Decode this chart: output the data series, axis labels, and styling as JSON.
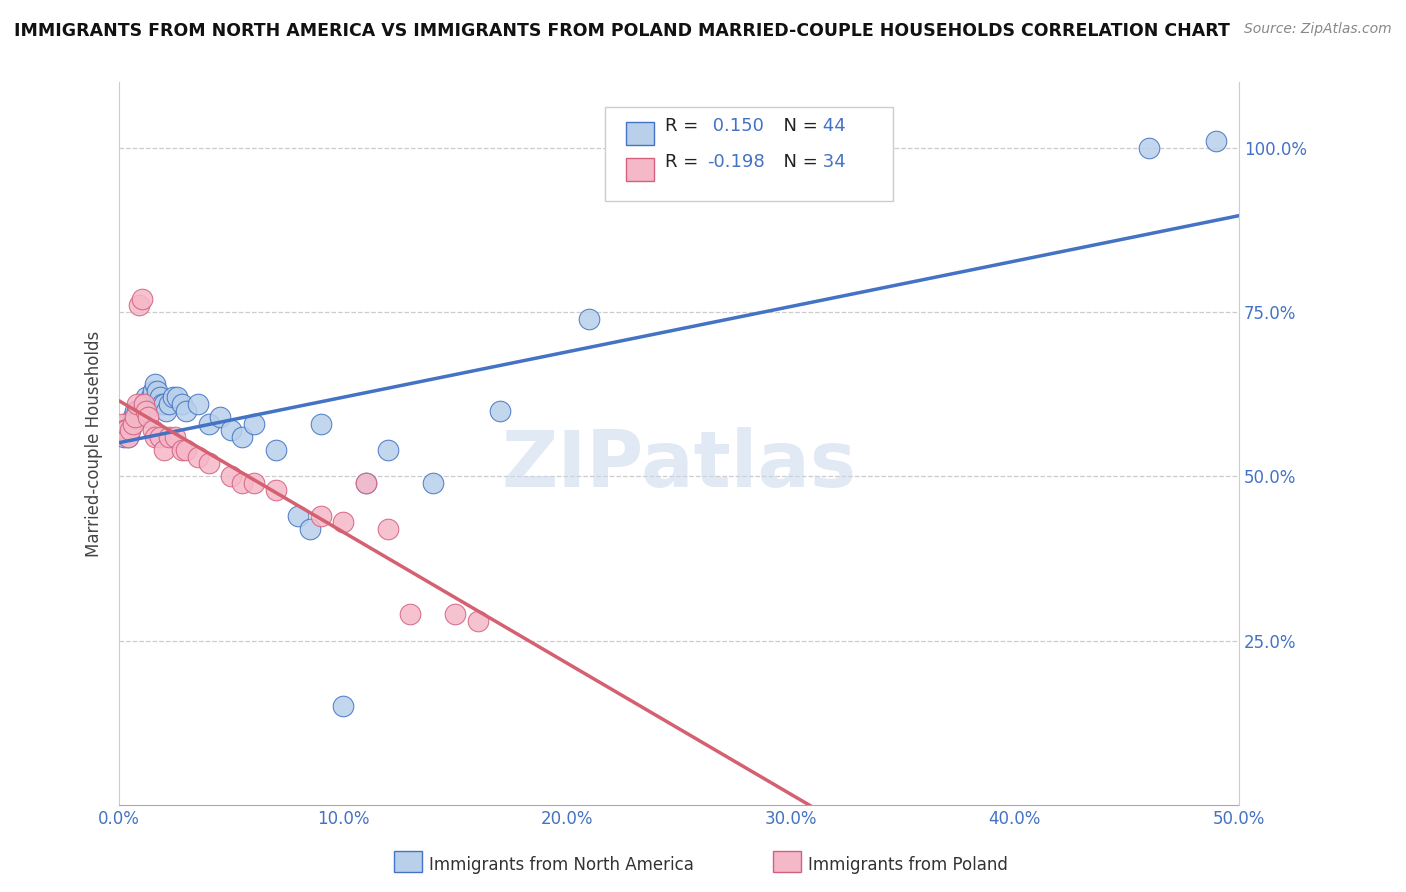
{
  "title": "IMMIGRANTS FROM NORTH AMERICA VS IMMIGRANTS FROM POLAND MARRIED-COUPLE HOUSEHOLDS CORRELATION CHART",
  "source": "Source: ZipAtlas.com",
  "ylabel": "Married-couple Households",
  "xlim": [
    0.0,
    0.5
  ],
  "ylim": [
    0.0,
    1.1
  ],
  "yticks": [
    0.25,
    0.5,
    0.75,
    1.0
  ],
  "yticklabels": [
    "25.0%",
    "50.0%",
    "75.0%",
    "100.0%"
  ],
  "xticks": [
    0.0,
    0.1,
    0.2,
    0.3,
    0.4,
    0.5
  ],
  "xticklabels": [
    "0.0%",
    "10.0%",
    "20.0%",
    "30.0%",
    "40.0%",
    "50.0%"
  ],
  "legend_labels": [
    "Immigrants from North America",
    "Immigrants from Poland"
  ],
  "R_blue": 0.15,
  "N_blue": 44,
  "R_pink": -0.198,
  "N_pink": 34,
  "blue_fill": "#b8d0ea",
  "pink_fill": "#f5b8c8",
  "blue_edge": "#4472c4",
  "pink_edge": "#d46080",
  "blue_line_color": "#4472c4",
  "pink_line_color": "#d46070",
  "watermark": "ZIPatlas",
  "background_color": "#ffffff",
  "grid_color": "#cccccc",
  "blue_scatter": [
    [
      0.001,
      0.57
    ],
    [
      0.002,
      0.56
    ],
    [
      0.003,
      0.58
    ],
    [
      0.004,
      0.56
    ],
    [
      0.005,
      0.57
    ],
    [
      0.006,
      0.59
    ],
    [
      0.007,
      0.6
    ],
    [
      0.008,
      0.6
    ],
    [
      0.009,
      0.59
    ],
    [
      0.01,
      0.6
    ],
    [
      0.011,
      0.61
    ],
    [
      0.012,
      0.62
    ],
    [
      0.013,
      0.61
    ],
    [
      0.014,
      0.62
    ],
    [
      0.015,
      0.63
    ],
    [
      0.016,
      0.64
    ],
    [
      0.017,
      0.63
    ],
    [
      0.018,
      0.62
    ],
    [
      0.019,
      0.61
    ],
    [
      0.02,
      0.61
    ],
    [
      0.021,
      0.6
    ],
    [
      0.022,
      0.61
    ],
    [
      0.024,
      0.62
    ],
    [
      0.026,
      0.62
    ],
    [
      0.028,
      0.61
    ],
    [
      0.03,
      0.6
    ],
    [
      0.035,
      0.61
    ],
    [
      0.04,
      0.58
    ],
    [
      0.045,
      0.59
    ],
    [
      0.05,
      0.57
    ],
    [
      0.055,
      0.56
    ],
    [
      0.06,
      0.58
    ],
    [
      0.07,
      0.54
    ],
    [
      0.08,
      0.44
    ],
    [
      0.085,
      0.42
    ],
    [
      0.09,
      0.58
    ],
    [
      0.1,
      0.15
    ],
    [
      0.11,
      0.49
    ],
    [
      0.12,
      0.54
    ],
    [
      0.14,
      0.49
    ],
    [
      0.17,
      0.6
    ],
    [
      0.21,
      0.74
    ],
    [
      0.46,
      1.0
    ],
    [
      0.49,
      1.01
    ]
  ],
  "pink_scatter": [
    [
      0.001,
      0.58
    ],
    [
      0.002,
      0.57
    ],
    [
      0.003,
      0.57
    ],
    [
      0.004,
      0.56
    ],
    [
      0.005,
      0.57
    ],
    [
      0.006,
      0.58
    ],
    [
      0.007,
      0.59
    ],
    [
      0.008,
      0.61
    ],
    [
      0.009,
      0.76
    ],
    [
      0.01,
      0.77
    ],
    [
      0.011,
      0.61
    ],
    [
      0.012,
      0.6
    ],
    [
      0.013,
      0.59
    ],
    [
      0.015,
      0.57
    ],
    [
      0.016,
      0.56
    ],
    [
      0.018,
      0.56
    ],
    [
      0.02,
      0.54
    ],
    [
      0.022,
      0.56
    ],
    [
      0.025,
      0.56
    ],
    [
      0.028,
      0.54
    ],
    [
      0.03,
      0.54
    ],
    [
      0.035,
      0.53
    ],
    [
      0.04,
      0.52
    ],
    [
      0.05,
      0.5
    ],
    [
      0.055,
      0.49
    ],
    [
      0.06,
      0.49
    ],
    [
      0.07,
      0.48
    ],
    [
      0.09,
      0.44
    ],
    [
      0.1,
      0.43
    ],
    [
      0.11,
      0.49
    ],
    [
      0.12,
      0.42
    ],
    [
      0.13,
      0.29
    ],
    [
      0.15,
      0.29
    ],
    [
      0.16,
      0.28
    ]
  ]
}
